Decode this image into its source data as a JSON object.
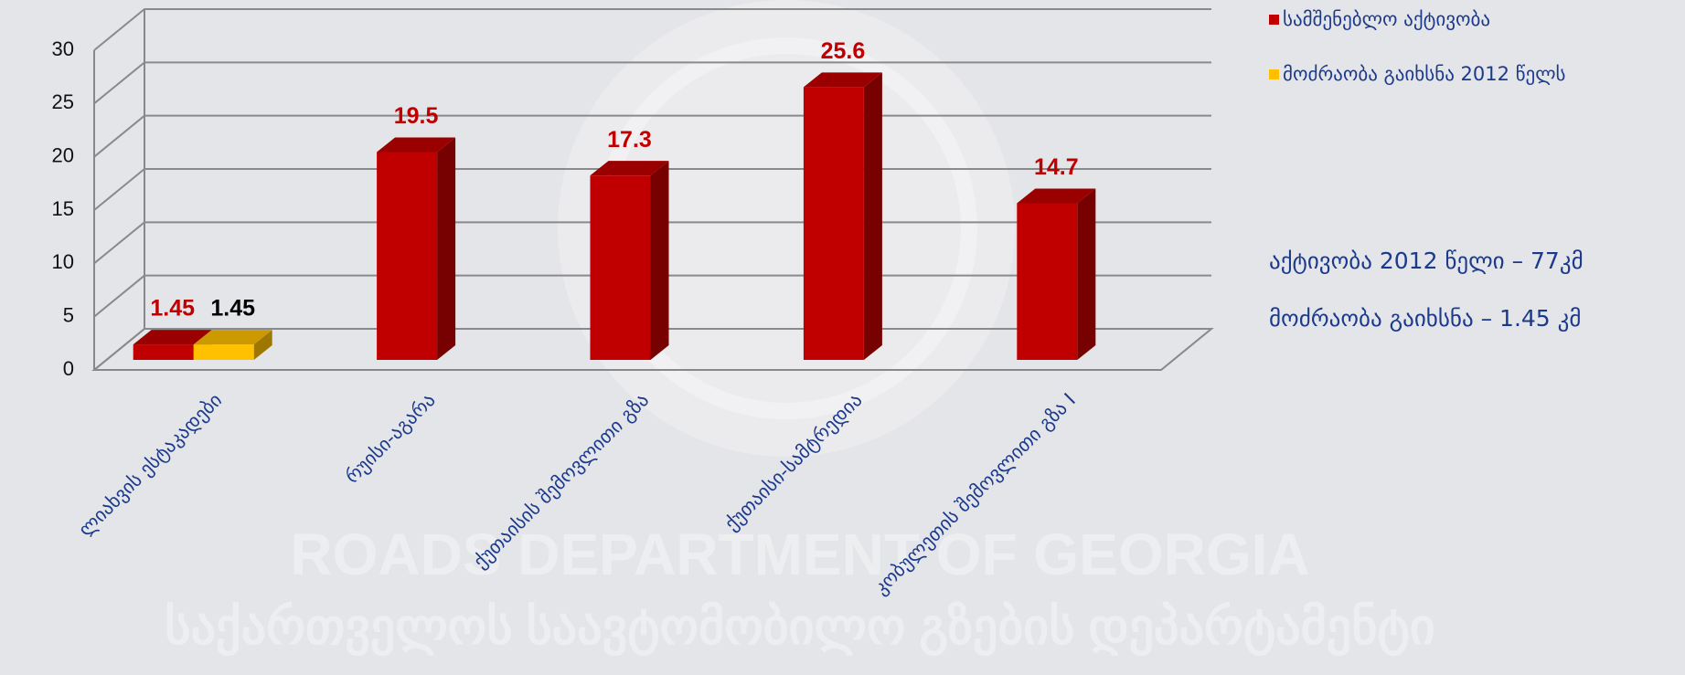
{
  "chart_data": {
    "type": "bar",
    "categories": [
      "ლიახვის ესტაკადები",
      "რუისი-აგარა",
      "ქუთაისის შემოვლითი გზა",
      "ქუთაისი-სამტრედია",
      "კობულეთის შემოვლითი გზა I"
    ],
    "series": [
      {
        "name": "სამშენებლო აქტივობა",
        "color": "#c00000",
        "label_color": "#c00000",
        "values": [
          1.45,
          19.5,
          17.3,
          25.6,
          14.7
        ]
      },
      {
        "name": "მოძრაობა გაიხსნა 2012 წელს",
        "color": "#ffc000",
        "label_color": "#000000",
        "values": [
          1.45,
          null,
          null,
          null,
          null
        ]
      }
    ],
    "ylim": [
      0,
      30
    ],
    "yticks": [
      0,
      5,
      10,
      15,
      20,
      25,
      30
    ],
    "grid": true,
    "legend": "top-right",
    "annotations": [
      "აქტივობა 2012 წელი – 77კმ",
      "მოძრაობა გაიხსნა – 1.45 კმ"
    ],
    "watermark": [
      "ROADS DEPARTMENT OF GEORGIA",
      "საქართველოს საავტომობილო გზების დეპარტამენტი"
    ]
  }
}
